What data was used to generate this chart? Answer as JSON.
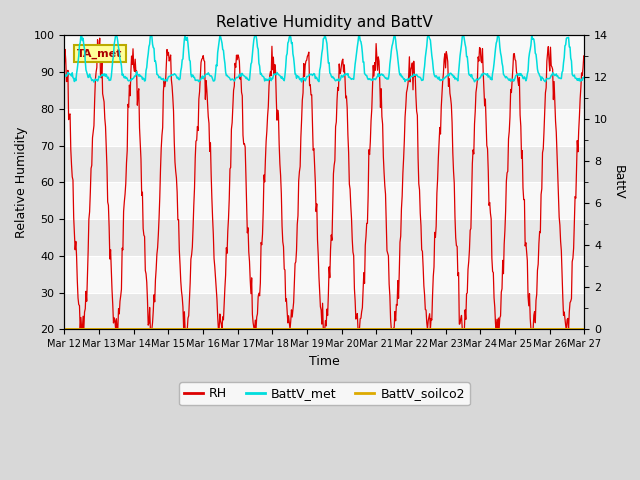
{
  "title": "Relative Humidity and BattV",
  "ylabel_left": "Relative Humidity",
  "ylabel_right": "BattV",
  "xlabel": "Time",
  "ylim_left": [
    20,
    100
  ],
  "ylim_right": [
    0,
    14
  ],
  "yticks_left": [
    20,
    30,
    40,
    50,
    60,
    70,
    80,
    90,
    100
  ],
  "yticks_right": [
    0,
    2,
    4,
    6,
    8,
    10,
    12,
    14
  ],
  "x_tick_labels": [
    "Mar 12",
    "Mar 13",
    "Mar 14",
    "Mar 15",
    "Mar 16",
    "Mar 17",
    "Mar 18",
    "Mar 19",
    "Mar 20",
    "Mar 21",
    "Mar 22",
    "Mar 23",
    "Mar 24",
    "Mar 25",
    "Mar 26",
    "Mar 27"
  ],
  "rh_color": "#dd0000",
  "battv_met_color": "#00dddd",
  "battv_soilco2_color": "#ddaa00",
  "background_color": "#d8d8d8",
  "plot_bg_color": "#f0f0f0",
  "legend_label_rh": "RH",
  "legend_label_battv_met": "BattV_met",
  "legend_label_battv_soilco2": "BattV_soilco2",
  "annotation_box_text": "TA_met",
  "annotation_box_color": "#bbaa00",
  "annotation_box_bg": "#ffff99"
}
